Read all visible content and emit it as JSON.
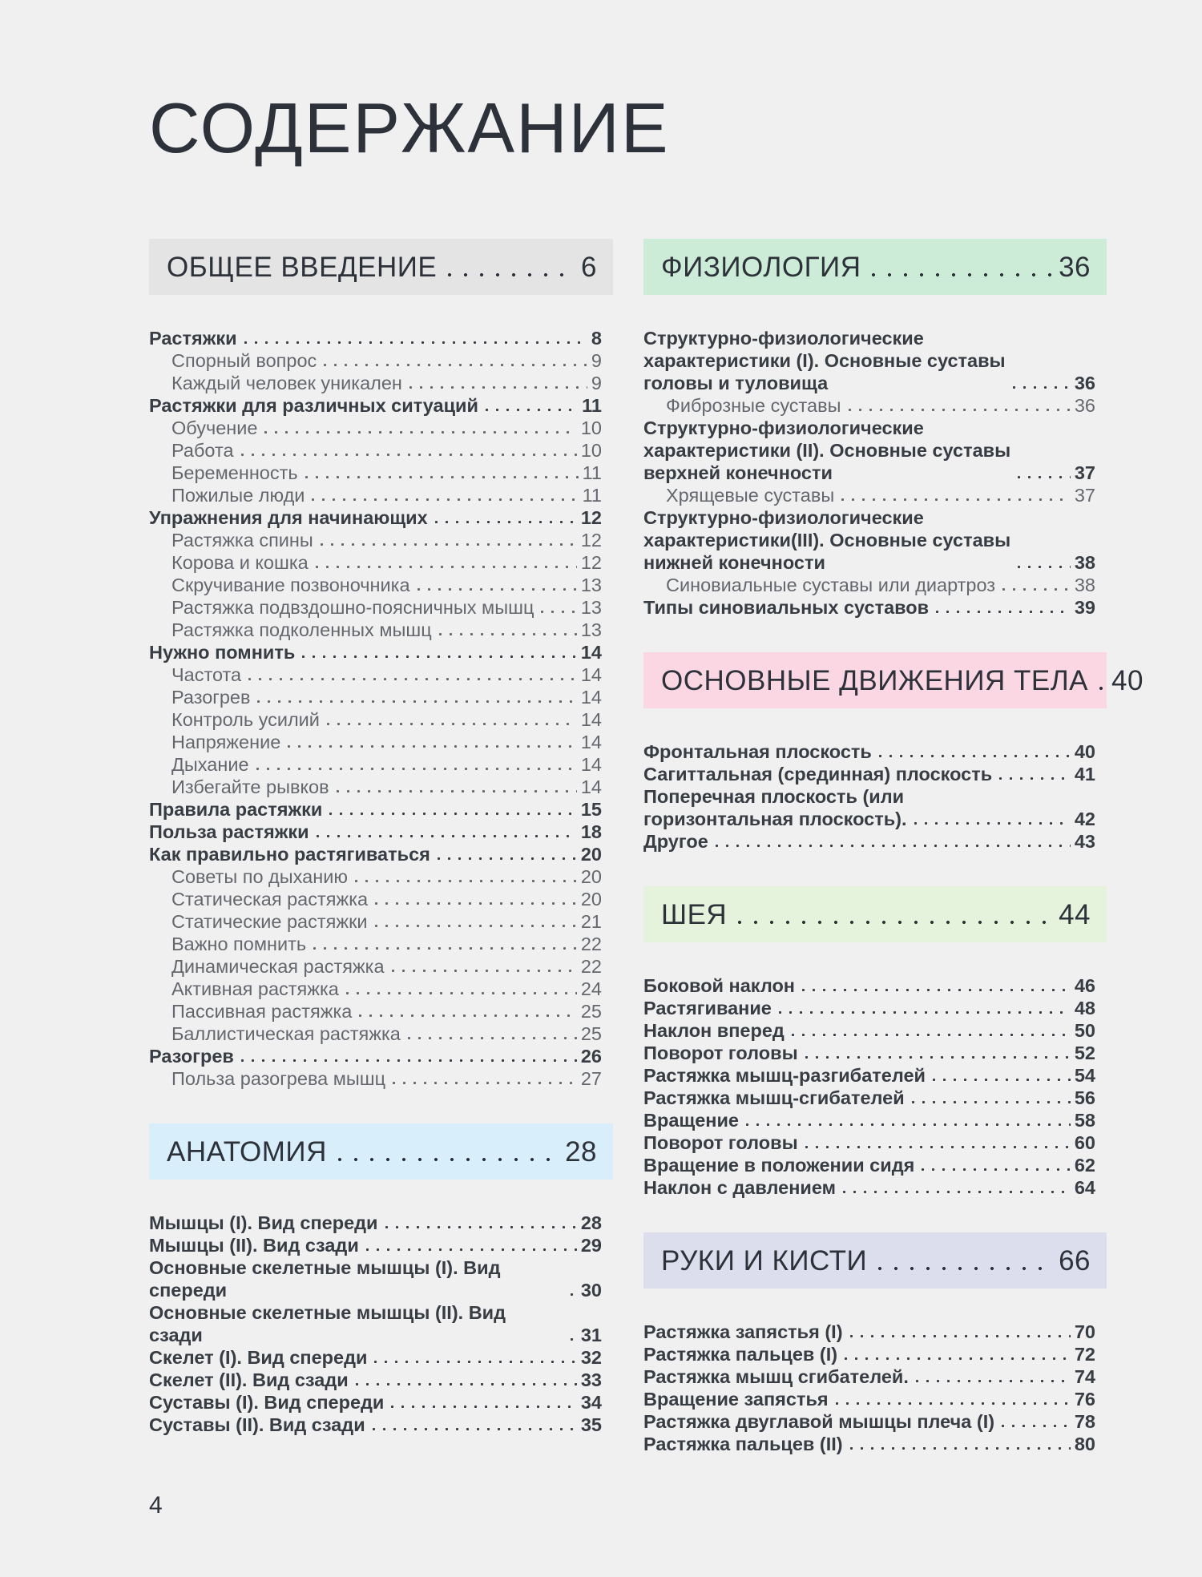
{
  "title": "СОДЕРЖАНИЕ",
  "page_number": "4",
  "colors": {
    "background": "#f0f0f1",
    "heading_text": "#2d323a",
    "entry_bold_text": "#383d44",
    "entry_regular_text": "#64686d",
    "box_gray": "#e4e4e5",
    "box_blue": "#d8eefa",
    "box_green": "#cdecd7",
    "box_pink": "#fbd7e3",
    "box_light_green": "#e5f2dc",
    "box_lavender": "#dcdded"
  },
  "sections": [
    {
      "id": "obshchee-vvedenie",
      "column": "left",
      "header": {
        "label": "ОБЩЕЕ ВВЕДЕНИЕ",
        "page": "6",
        "bg": "#e4e4e5"
      },
      "entries": [
        {
          "label": "Растяжки",
          "page": "8",
          "bold": true,
          "indent": false
        },
        {
          "label": "Спорный вопрос",
          "page": "9",
          "bold": false,
          "indent": true
        },
        {
          "label": "Каждый человек уникален",
          "page": "9",
          "bold": false,
          "indent": true
        },
        {
          "label": "Растяжки для различных ситуаций",
          "page": "11",
          "bold": true,
          "indent": false
        },
        {
          "label": "Обучение",
          "page": "10",
          "bold": false,
          "indent": true
        },
        {
          "label": "Работа",
          "page": "10",
          "bold": false,
          "indent": true
        },
        {
          "label": "Беременность",
          "page": "11",
          "bold": false,
          "indent": true
        },
        {
          "label": "Пожилые люди",
          "page": "11",
          "bold": false,
          "indent": true
        },
        {
          "label": "Упражнения для начинающих",
          "page": "12",
          "bold": true,
          "indent": false
        },
        {
          "label": "Растяжка спины",
          "page": "12",
          "bold": false,
          "indent": true
        },
        {
          "label": "Корова и кошка",
          "page": "12",
          "bold": false,
          "indent": true
        },
        {
          "label": "Скручивание позвоночника",
          "page": "13",
          "bold": false,
          "indent": true
        },
        {
          "label": "Растяжка подвздошно-поясничных мышц",
          "page": "13",
          "bold": false,
          "indent": true
        },
        {
          "label": "Растяжка подколенных мышц",
          "page": "13",
          "bold": false,
          "indent": true
        },
        {
          "label": "Нужно помнить",
          "page": "14",
          "bold": true,
          "indent": false
        },
        {
          "label": "Частота",
          "page": "14",
          "bold": false,
          "indent": true
        },
        {
          "label": "Разогрев",
          "page": "14",
          "bold": false,
          "indent": true
        },
        {
          "label": "Контроль усилий",
          "page": "14",
          "bold": false,
          "indent": true
        },
        {
          "label": "Напряжение",
          "page": "14",
          "bold": false,
          "indent": true
        },
        {
          "label": "Дыхание",
          "page": "14",
          "bold": false,
          "indent": true
        },
        {
          "label": "Избегайте рывков",
          "page": "14",
          "bold": false,
          "indent": true
        },
        {
          "label": "Правила растяжки",
          "page": "15",
          "bold": true,
          "indent": false
        },
        {
          "label": "Польза растяжки",
          "page": "18",
          "bold": true,
          "indent": false
        },
        {
          "label": "Как правильно растягиваться",
          "page": "20",
          "bold": true,
          "indent": false
        },
        {
          "label": "Советы по дыханию",
          "page": "20",
          "bold": false,
          "indent": true
        },
        {
          "label": "Статическая растяжка",
          "page": "20",
          "bold": false,
          "indent": true
        },
        {
          "label": "Статические растяжки",
          "page": "21",
          "bold": false,
          "indent": true
        },
        {
          "label": "Важно помнить",
          "page": "22",
          "bold": false,
          "indent": true
        },
        {
          "label": "Динамическая растяжка",
          "page": "22",
          "bold": false,
          "indent": true
        },
        {
          "label": "Активная растяжка",
          "page": "24",
          "bold": false,
          "indent": true
        },
        {
          "label": "Пассивная растяжка",
          "page": "25",
          "bold": false,
          "indent": true
        },
        {
          "label": "Баллистическая растяжка",
          "page": "25",
          "bold": false,
          "indent": true
        },
        {
          "label": "Разогрев",
          "page": "26",
          "bold": true,
          "indent": false
        },
        {
          "label": "Польза разогрева мышц",
          "page": "27",
          "bold": false,
          "indent": true
        }
      ]
    },
    {
      "id": "anatomiya",
      "column": "left",
      "header": {
        "label": "АНАТОМИЯ",
        "page": "28",
        "bg": "#d8eefa"
      },
      "entries": [
        {
          "label": "Мышцы (I). Вид спереди",
          "page": "28",
          "bold": true,
          "indent": false
        },
        {
          "label": "Мышцы (II). Вид сзади",
          "page": "29",
          "bold": true,
          "indent": false
        },
        {
          "label": "Основные скелетные мышцы (I). Вид спереди",
          "page": "30",
          "bold": true,
          "indent": false
        },
        {
          "label": "Основные скелетные мышцы (II). Вид сзади",
          "page": "31",
          "bold": true,
          "indent": false
        },
        {
          "label": "Скелет (I). Вид спереди",
          "page": "32",
          "bold": true,
          "indent": false
        },
        {
          "label": "Скелет (II). Вид сзади",
          "page": "33",
          "bold": true,
          "indent": false
        },
        {
          "label": "Суставы (I). Вид спереди",
          "page": "34",
          "bold": true,
          "indent": false
        },
        {
          "label": "Суставы (II). Вид сзади",
          "page": "35",
          "bold": true,
          "indent": false
        }
      ]
    },
    {
      "id": "fiziologiya",
      "column": "right",
      "header": {
        "label": "ФИЗИОЛОГИЯ",
        "page": "36",
        "bg": "#cdecd7"
      },
      "entries": [
        {
          "label": "Структурно-физиологические\nхарактеристики (I). Основные суставы\nголовы и туловища",
          "page": "36",
          "bold": true,
          "indent": false
        },
        {
          "label": "Фиброзные суставы",
          "page": "36",
          "bold": false,
          "indent": true
        },
        {
          "label": "Структурно-физиологические\nхарактеристики (II). Основные суставы\nверхней конечности",
          "page": "37",
          "bold": true,
          "indent": false
        },
        {
          "label": "Хрящевые суставы",
          "page": "37",
          "bold": false,
          "indent": true
        },
        {
          "label": "Структурно-физиологические\nхарактеристики(III). Основные суставы\nнижней конечности",
          "page": "38",
          "bold": true,
          "indent": false
        },
        {
          "label": "Синовиальные суставы или диартроз",
          "page": "38",
          "bold": false,
          "indent": true
        },
        {
          "label": "Типы синовиальных суставов",
          "page": "39",
          "bold": true,
          "indent": false
        }
      ]
    },
    {
      "id": "osnovnye-dvizheniya-tela",
      "column": "right",
      "header": {
        "label": "ОСНОВНЫЕ ДВИЖЕНИЯ ТЕЛА",
        "page": "40",
        "bg": "#fbd7e3"
      },
      "entries": [
        {
          "label": "Фронтальная плоскость",
          "page": "40",
          "bold": true,
          "indent": false
        },
        {
          "label": "Сагиттальная (срединная) плоскость",
          "page": "41",
          "bold": true,
          "indent": false
        },
        {
          "label": "Поперечная плоскость (или\nгоризонтальная плоскость).",
          "page": "42",
          "bold": true,
          "indent": false
        },
        {
          "label": "Другое",
          "page": "43",
          "bold": true,
          "indent": false
        }
      ]
    },
    {
      "id": "sheya",
      "column": "right",
      "header": {
        "label": "ШЕЯ",
        "page": "44",
        "bg": "#e5f2dc"
      },
      "entries": [
        {
          "label": "Боковой наклон",
          "page": "46",
          "bold": true,
          "indent": false
        },
        {
          "label": "Растягивание",
          "page": "48",
          "bold": true,
          "indent": false
        },
        {
          "label": "Наклон вперед",
          "page": "50",
          "bold": true,
          "indent": false
        },
        {
          "label": "Поворот головы",
          "page": "52",
          "bold": true,
          "indent": false
        },
        {
          "label": "Растяжка мышц-разгибателей",
          "page": "54",
          "bold": true,
          "indent": false
        },
        {
          "label": "Растяжка мышц-сгибателей",
          "page": "56",
          "bold": true,
          "indent": false
        },
        {
          "label": "Вращение",
          "page": "58",
          "bold": true,
          "indent": false
        },
        {
          "label": "Поворот головы",
          "page": "60",
          "bold": true,
          "indent": false
        },
        {
          "label": "Вращение в положении сидя",
          "page": "62",
          "bold": true,
          "indent": false
        },
        {
          "label": "Наклон с давлением",
          "page": "64",
          "bold": true,
          "indent": false
        }
      ]
    },
    {
      "id": "ruki-i-kisti",
      "column": "right",
      "header": {
        "label": "РУКИ И КИСТИ",
        "page": "66",
        "bg": "#dcdded"
      },
      "entries": [
        {
          "label": "Растяжка запястья (I)",
          "page": "70",
          "bold": true,
          "indent": false
        },
        {
          "label": "Растяжка пальцев (I)",
          "page": "72",
          "bold": true,
          "indent": false
        },
        {
          "label": "Растяжка мышц сгибателей.",
          "page": "74",
          "bold": true,
          "indent": false
        },
        {
          "label": "Вращение запястья",
          "page": "76",
          "bold": true,
          "indent": false
        },
        {
          "label": "Растяжка двуглавой мышцы плеча (I)",
          "page": "78",
          "bold": true,
          "indent": false
        },
        {
          "label": "Растяжка пальцев (II)",
          "page": "80",
          "bold": true,
          "indent": false
        }
      ]
    }
  ]
}
